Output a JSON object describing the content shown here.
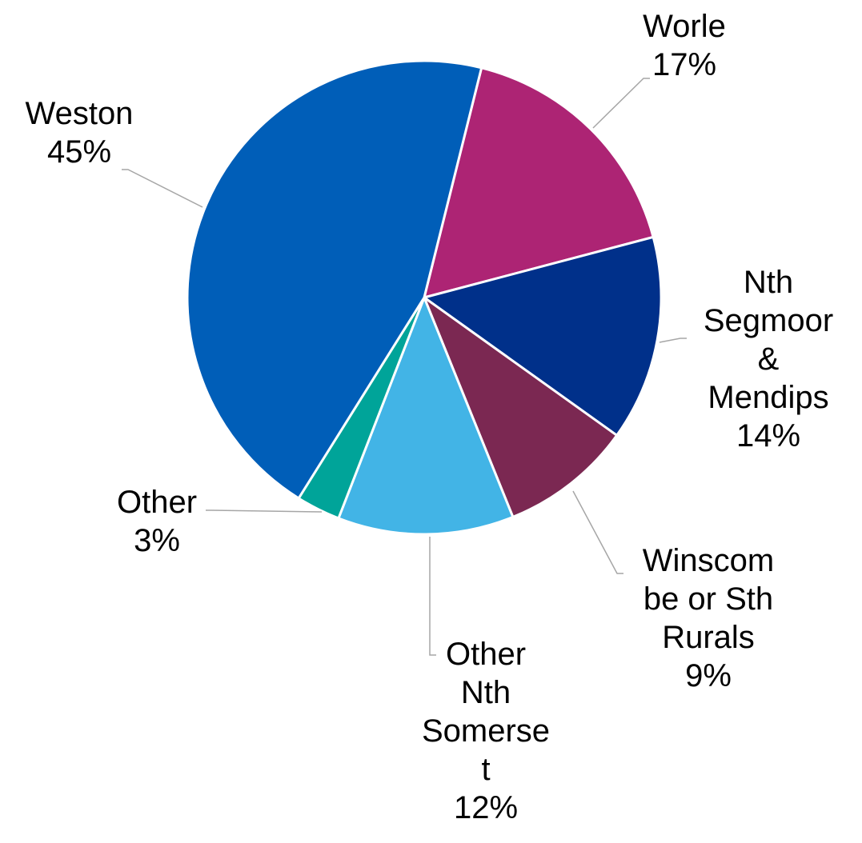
{
  "chart_data": {
    "type": "pie",
    "slices": [
      {
        "label_lines": [
          "Worle"
        ],
        "percent_label": "17%",
        "value": 17,
        "color": "#ad2474"
      },
      {
        "label_lines": [
          "Nth",
          "Segmoor",
          "&",
          "Mendips"
        ],
        "percent_label": "14%",
        "value": 14,
        "color": "#00308a"
      },
      {
        "label_lines": [
          "Winscom",
          "be or Sth",
          "Rurals"
        ],
        "percent_label": "9%",
        "value": 9,
        "color": "#7b2852"
      },
      {
        "label_lines": [
          "Other",
          "Nth",
          "Somerse",
          "t"
        ],
        "percent_label": "12%",
        "value": 12,
        "color": "#42b4e6"
      },
      {
        "label_lines": [
          "Other"
        ],
        "percent_label": "3%",
        "value": 3,
        "color": "#00a499"
      },
      {
        "label_lines": [
          "Weston"
        ],
        "percent_label": "45%",
        "value": 45,
        "color": "#005eb8"
      }
    ],
    "start_angle_deg": 14,
    "direction": "clockwise",
    "legend": "none",
    "data_labels": "outside-with-leader-lines"
  }
}
